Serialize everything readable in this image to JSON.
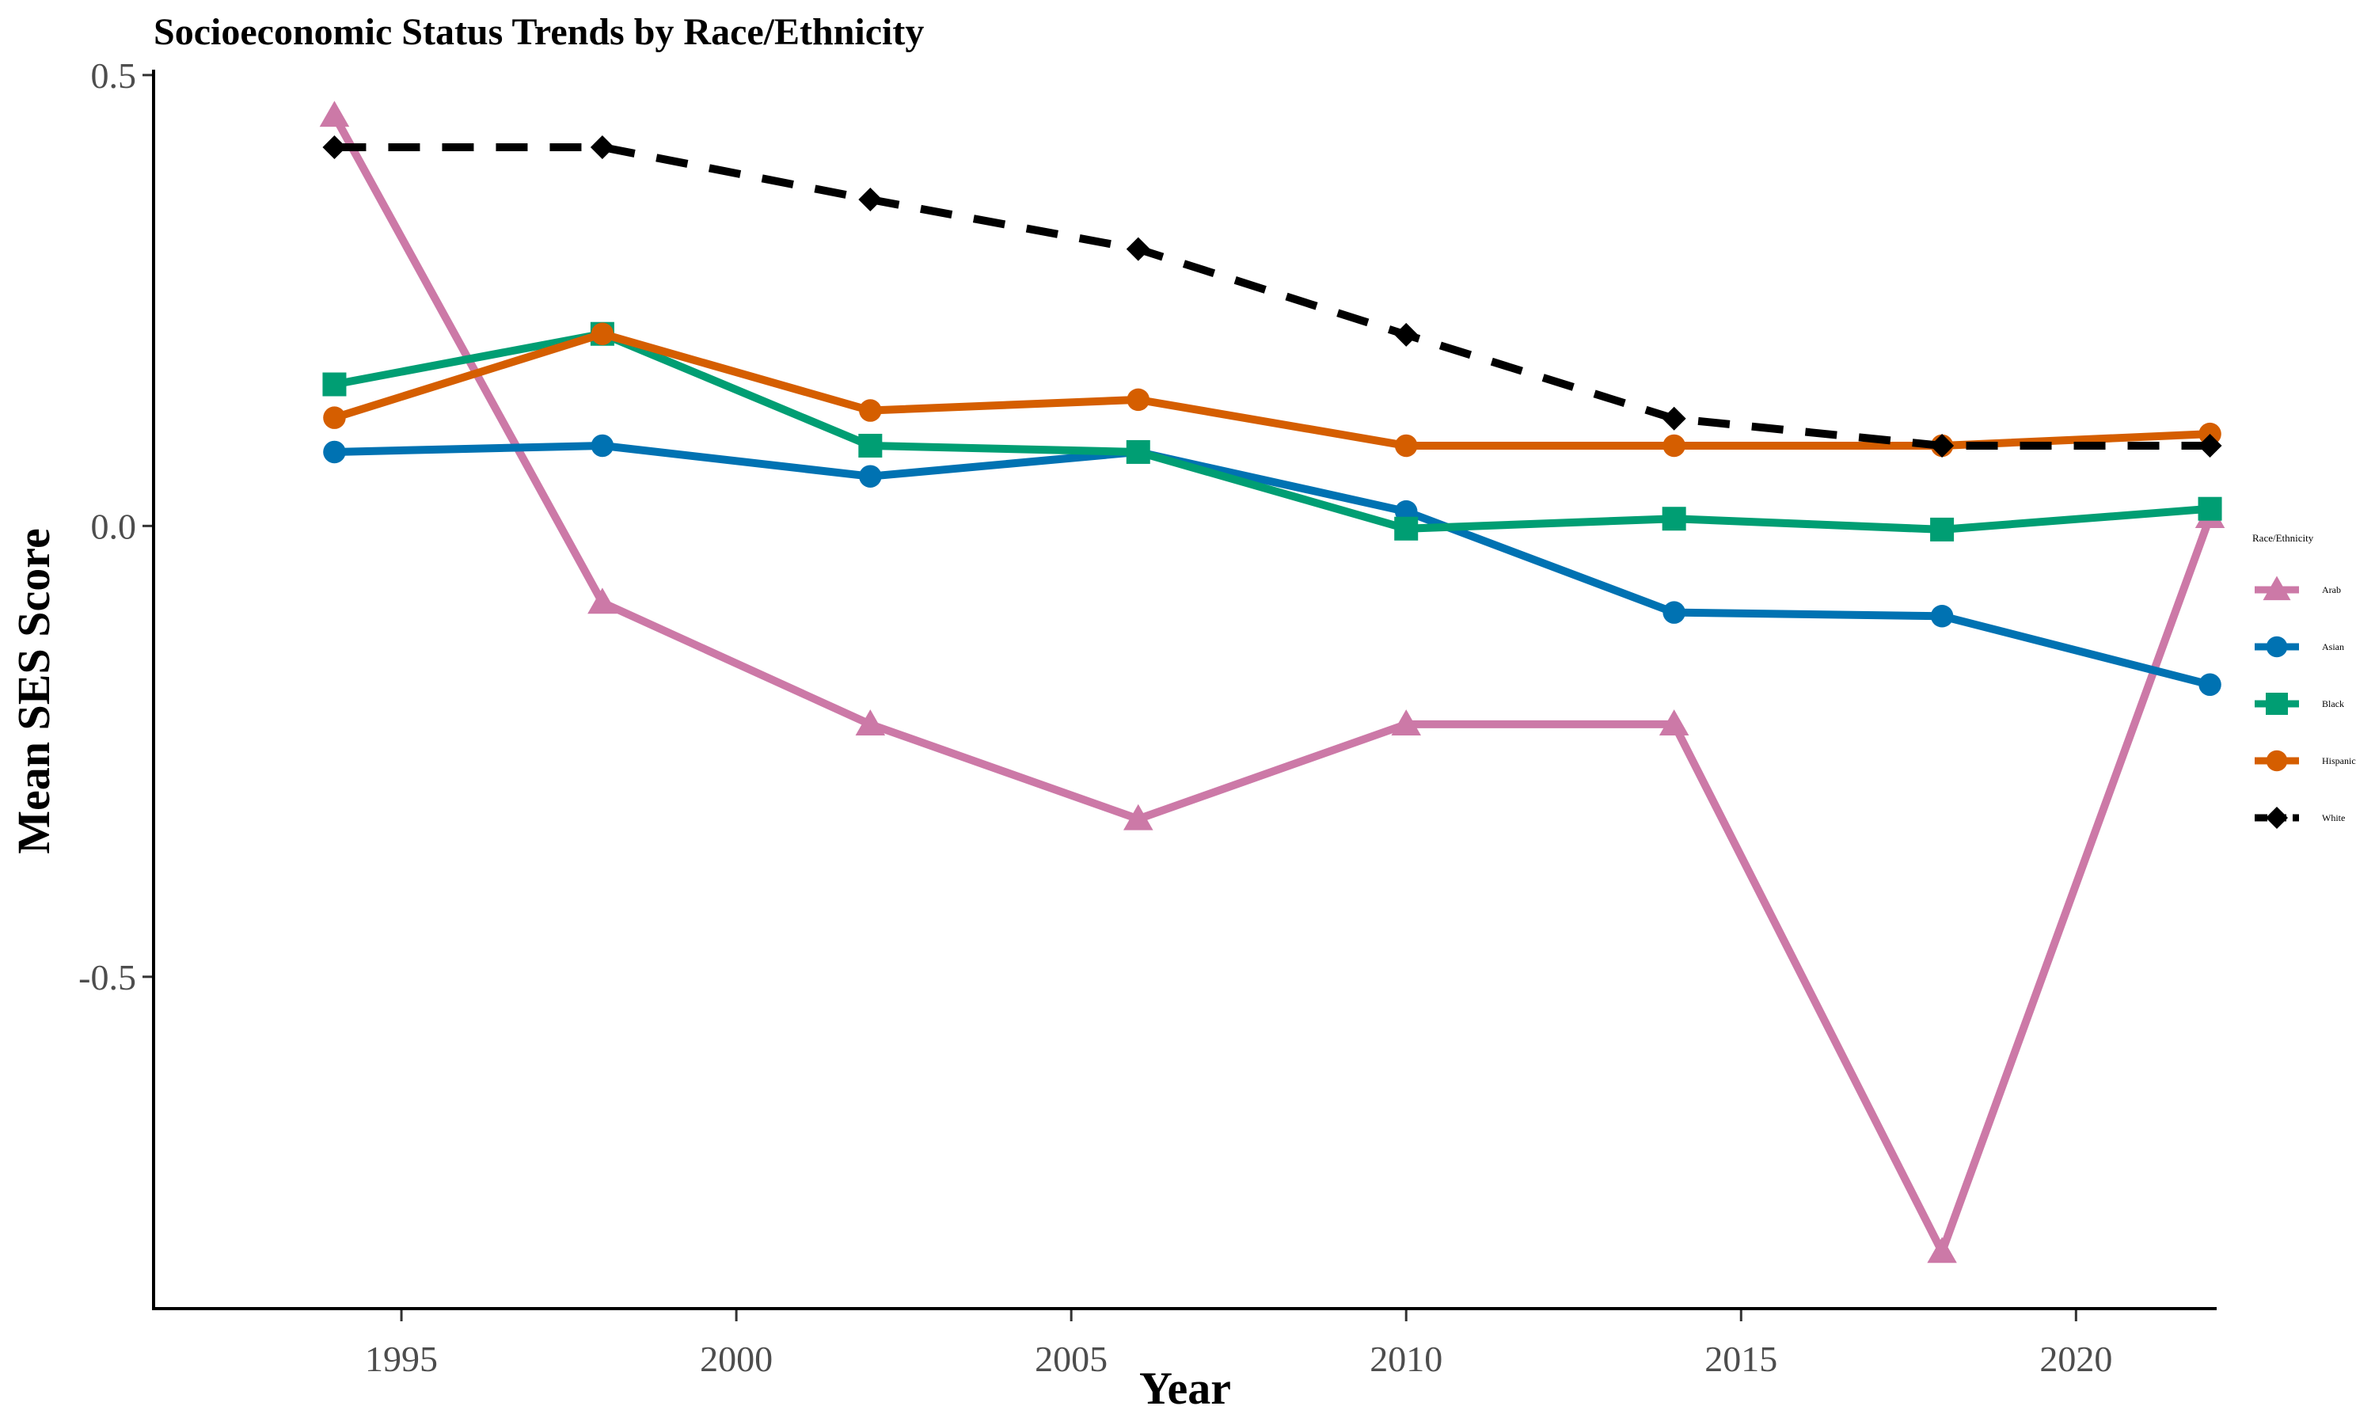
{
  "chart_data": {
    "type": "line",
    "title": "Socioeconomic Status Trends by Race/Ethnicity",
    "xlabel": "Year",
    "ylabel": "Mean SES Score",
    "x": [
      1994,
      1998,
      2002,
      2006,
      2010,
      2014,
      2018,
      2022
    ],
    "xlim": [
      1991.3,
      2022.1
    ],
    "ylim": [
      -0.868,
      0.506
    ],
    "x_ticks": [
      1995,
      2000,
      2005,
      2010,
      2015,
      2020
    ],
    "x_tick_labels": [
      "1995",
      "2000",
      "2005",
      "2010",
      "2015",
      "2020"
    ],
    "y_ticks": [
      0.5,
      0.0,
      -0.5
    ],
    "y_tick_labels": [
      "0.5",
      "0.0",
      "-0.5"
    ],
    "grid": false,
    "legend": {
      "title": "Race/Ethnicity",
      "placement": "right"
    },
    "series": [
      {
        "name": "Arab",
        "color": "#CC79A7",
        "marker": "triangle",
        "dash": "solid",
        "values": [
          0.455,
          -0.085,
          -0.22,
          -0.325,
          -0.22,
          -0.22,
          -0.805,
          0.01
        ]
      },
      {
        "name": "Asian",
        "color": "#0072B2",
        "marker": "circle",
        "dash": "solid",
        "values": [
          0.082,
          0.089,
          0.055,
          0.082,
          0.016,
          -0.096,
          -0.1,
          -0.176
        ]
      },
      {
        "name": "Black",
        "color": "#009E73",
        "marker": "square",
        "dash": "solid",
        "values": [
          0.157,
          0.213,
          0.089,
          0.082,
          -0.003,
          0.008,
          -0.004,
          0.019
        ]
      },
      {
        "name": "Hispanic",
        "color": "#D55E00",
        "marker": "circle",
        "dash": "solid",
        "values": [
          0.12,
          0.213,
          0.128,
          0.14,
          0.089,
          0.089,
          0.089,
          0.102
        ]
      },
      {
        "name": "White",
        "color": "#000000",
        "marker": "diamond",
        "dash": "dashed",
        "values": [
          0.42,
          0.42,
          0.362,
          0.307,
          0.212,
          0.119,
          0.089,
          0.089
        ]
      }
    ]
  }
}
